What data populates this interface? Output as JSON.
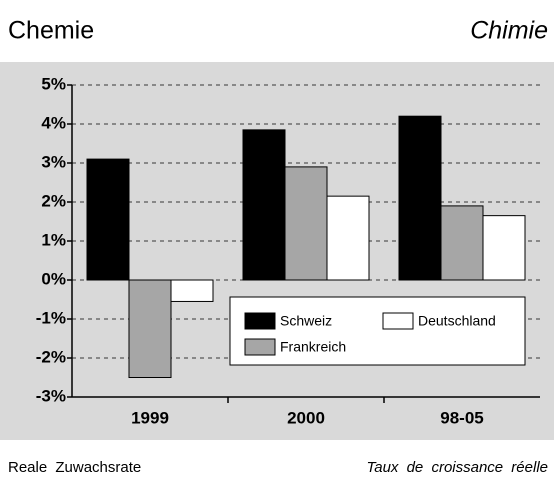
{
  "title_left": "Chemie",
  "title_right": "Chimie",
  "footer_left": "Reale Zuwachsrate",
  "footer_right": "Taux de croissance réelle",
  "chart_data": {
    "type": "bar",
    "categories": [
      "1999",
      "2000",
      "98-05"
    ],
    "series": [
      {
        "name": "Schweiz",
        "color": "#000000",
        "values": [
          3.1,
          3.85,
          4.2
        ]
      },
      {
        "name": "Frankreich",
        "color": "#a6a6a6",
        "values": [
          -2.5,
          2.9,
          1.9
        ]
      },
      {
        "name": "Deutschland",
        "color": "#ffffff",
        "values": [
          -0.55,
          2.15,
          1.65
        ]
      }
    ],
    "ylim": [
      -3,
      5
    ],
    "yticks": [
      {
        "value": -3,
        "label": "-3%"
      },
      {
        "value": -2,
        "label": "-2%"
      },
      {
        "value": -1,
        "label": "-1%"
      },
      {
        "value": 0,
        "label": "0%"
      },
      {
        "value": 1,
        "label": "1%"
      },
      {
        "value": 2,
        "label": "2%"
      },
      {
        "value": 3,
        "label": "3%"
      },
      {
        "value": 4,
        "label": "4%"
      },
      {
        "value": 5,
        "label": "5%"
      }
    ],
    "grid": true
  }
}
